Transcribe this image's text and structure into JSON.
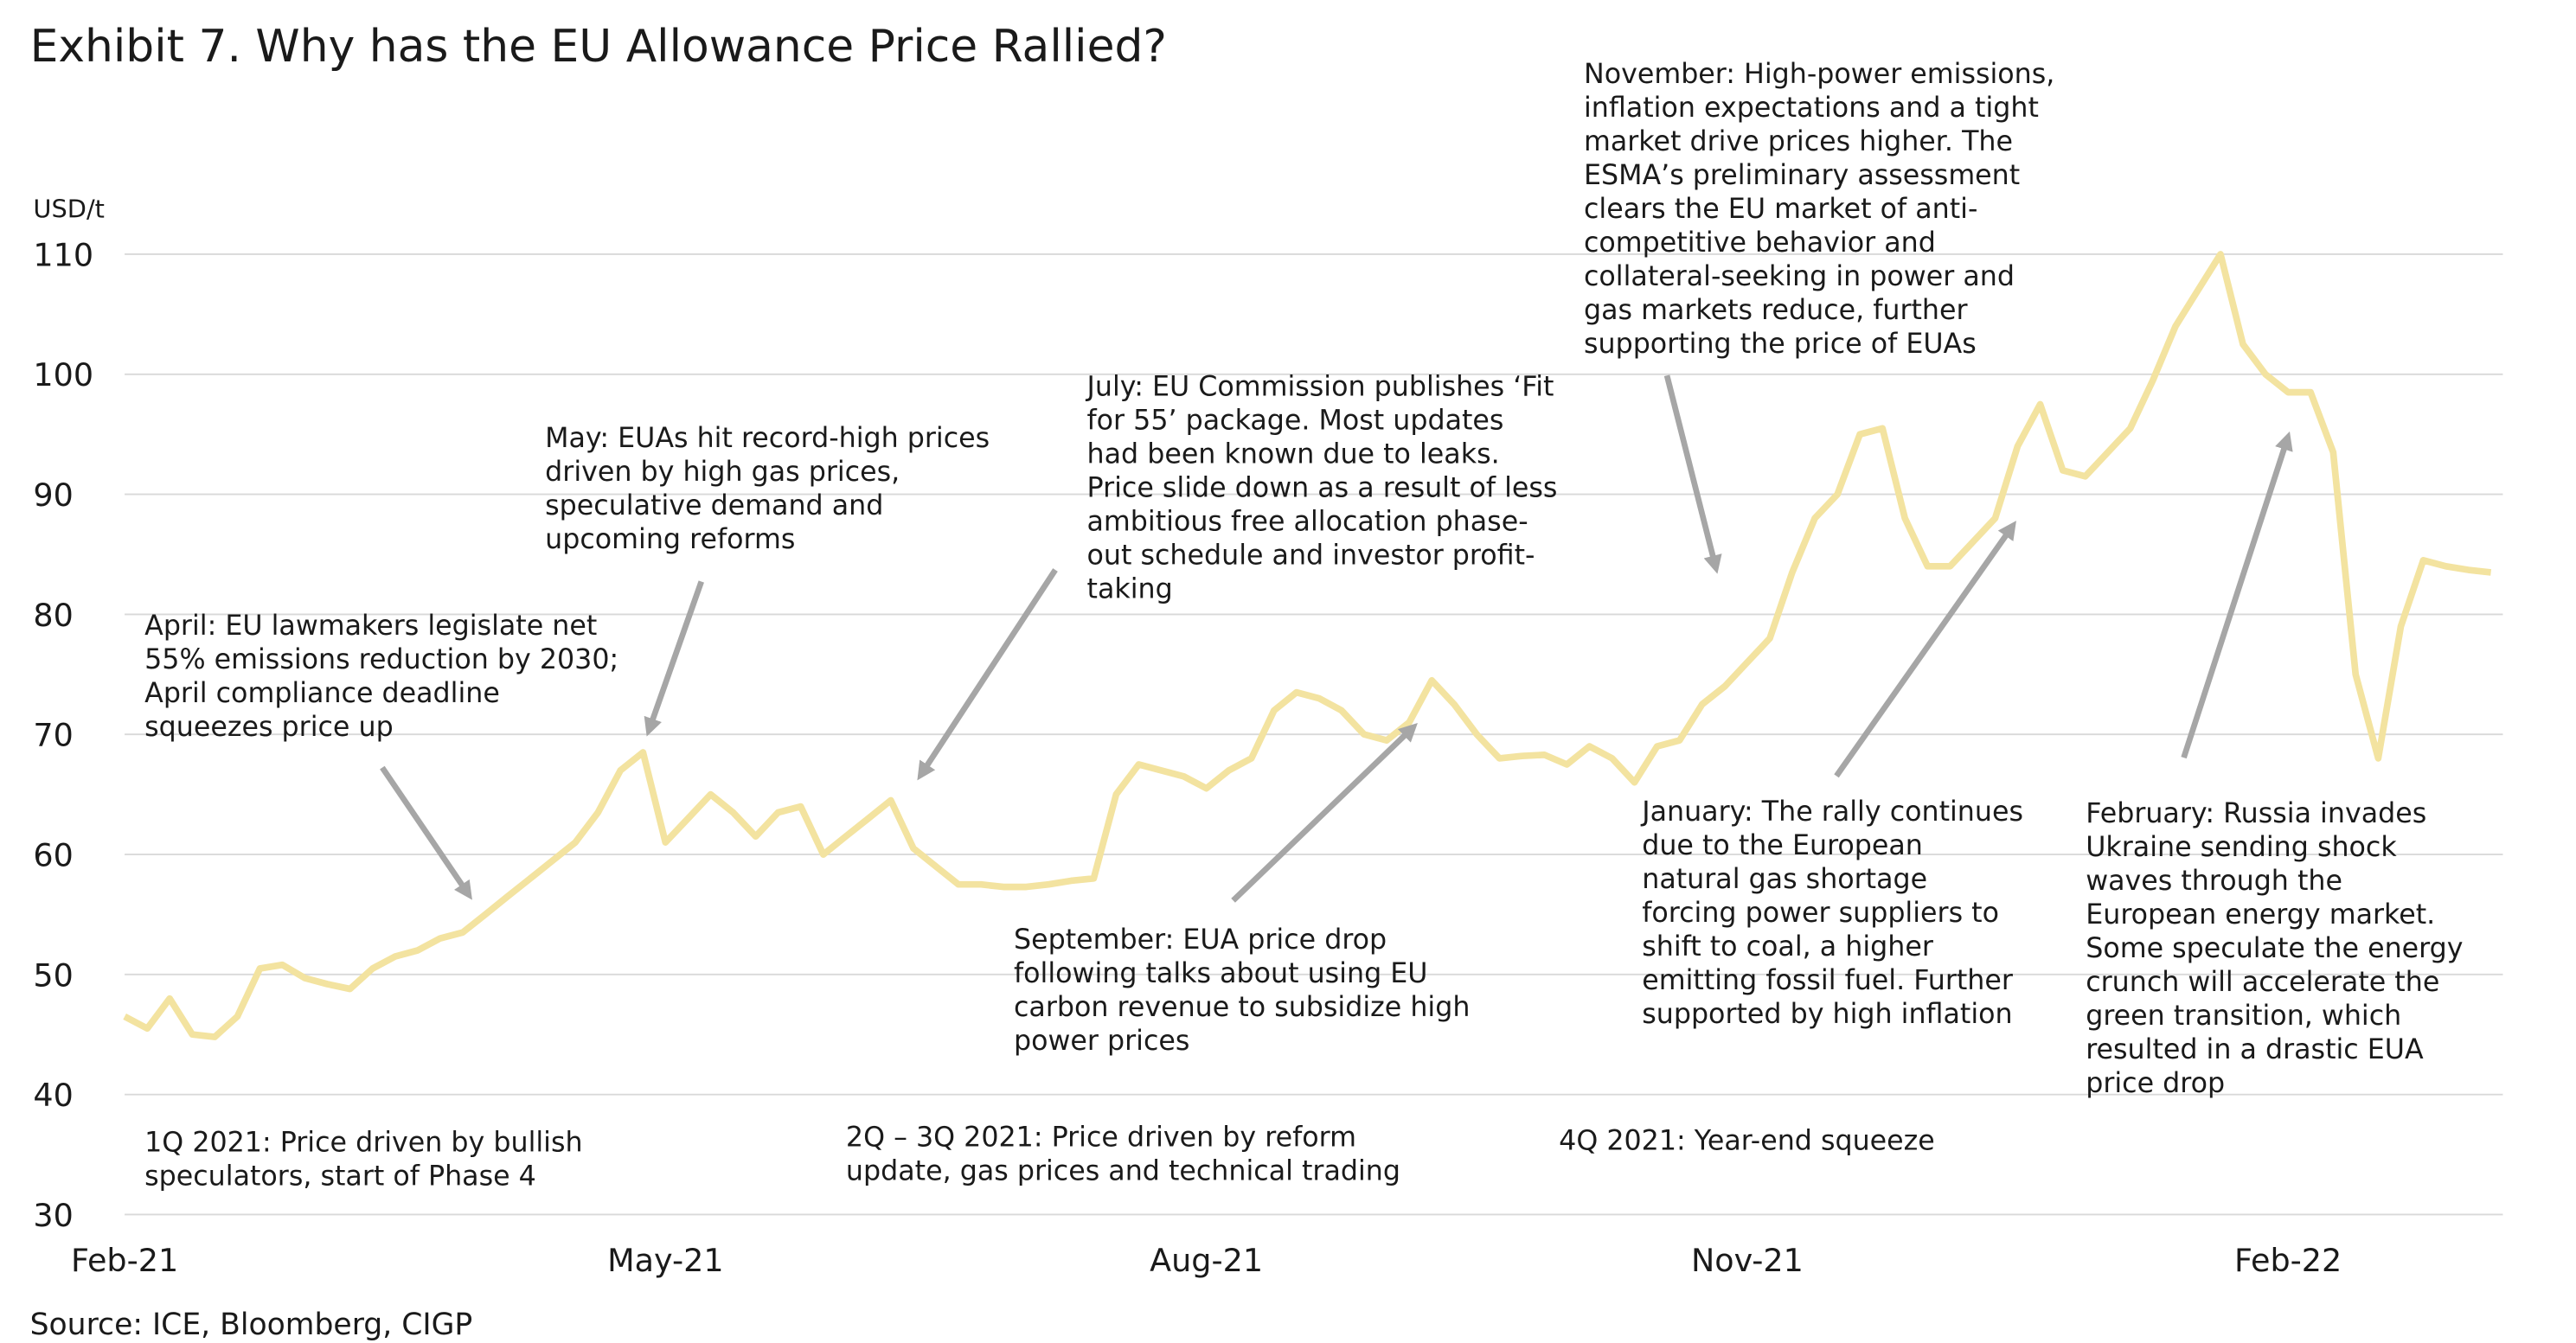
{
  "chart_data": {
    "type": "line",
    "title": "Exhibit 7. Why has the EU Allowance Price Rallied?",
    "y_label": "USD/t",
    "source": "Source: ICE, Bloomberg, CIGP",
    "color": "#f3e3a0",
    "grid": true,
    "ylim": [
      30,
      110
    ],
    "yticks": [
      30,
      40,
      50,
      60,
      70,
      80,
      90,
      100,
      110
    ],
    "categories": [
      "Feb-21",
      null,
      null,
      null,
      null,
      null,
      null,
      null,
      null,
      null,
      null,
      null,
      null,
      null,
      null,
      null,
      null,
      null,
      null,
      null,
      null,
      null,
      null,
      null,
      "May-21",
      null,
      null,
      null,
      null,
      null,
      null,
      null,
      null,
      null,
      null,
      null,
      null,
      null,
      null,
      null,
      null,
      null,
      null,
      null,
      null,
      null,
      null,
      null,
      "Aug-21",
      null,
      null,
      null,
      null,
      null,
      null,
      null,
      null,
      null,
      null,
      null,
      null,
      null,
      null,
      null,
      null,
      null,
      null,
      null,
      null,
      null,
      null,
      null,
      "Nov-21",
      null,
      null,
      null,
      null,
      null,
      null,
      null,
      null,
      null,
      null,
      null,
      null,
      null,
      null,
      null,
      null,
      null,
      null,
      null,
      null,
      null,
      null,
      null,
      "Feb-22",
      null,
      null,
      null,
      null,
      null,
      null,
      null,
      null,
      null
    ],
    "values": [
      46.5,
      45.5,
      48,
      45,
      44.8,
      46.5,
      50.5,
      50.8,
      49.7,
      49.2,
      48.8,
      50.5,
      51.5,
      52,
      53,
      53.5,
      55,
      56.5,
      58,
      59.5,
      61,
      63.5,
      67,
      68.5,
      61,
      63,
      65,
      63.5,
      61.5,
      63.5,
      64,
      60,
      61.5,
      63,
      64.5,
      60.5,
      59,
      57.5,
      57.5,
      57.3,
      57.3,
      57.5,
      57.8,
      58,
      65,
      67.5,
      67,
      66.5,
      65.5,
      67,
      68,
      72,
      73.5,
      73,
      72,
      70,
      69.5,
      71,
      74.5,
      72.5,
      70,
      68,
      68.2,
      68.3,
      67.5,
      69,
      68,
      66,
      69,
      69.5,
      72.5,
      74,
      76,
      78,
      83.5,
      88,
      90,
      95,
      95.5,
      88,
      84,
      84,
      86,
      88,
      94,
      97.5,
      92,
      91.5,
      93.5,
      95.5,
      99.5,
      104,
      107,
      110,
      102.5,
      100,
      98.5,
      98.5,
      93.5,
      75,
      68,
      79,
      84.5,
      84,
      83.7,
      83.5
    ],
    "annotations": [
      [
        "April: EU lawmakers legislate net",
        "55% emissions reduction by 2030;",
        "April compliance deadline",
        "squeezes price up"
      ],
      [
        "May: EUAs hit record-high prices",
        "driven by high gas prices,",
        "speculative demand and",
        "upcoming reforms"
      ],
      [
        "July: EU Commission publishes ‘Fit",
        "for 55’ package. Most updates",
        "had been known due to leaks.",
        "Price slide down as a result of less",
        "ambitious free allocation phase-",
        "out schedule and investor profit-",
        "taking"
      ],
      [
        "November: High-power emissions,",
        "inflation expectations and a tight",
        "market drive prices higher. The",
        "ESMA’s preliminary assessment",
        "clears the EU market of anti-",
        "competitive behavior and",
        "collateral-seeking in power and",
        "gas markets  reduce, further",
        "supporting the price of EUAs"
      ],
      [
        "September: EUA price drop",
        "following talks about using EU",
        "carbon revenue to subsidize high",
        "power prices"
      ],
      [
        "January: The rally continues",
        "due to the European",
        "natural gas shortage",
        "forcing power suppliers to",
        "shift to coal, a higher",
        "emitting fossil fuel. Further",
        "supported by high inflation"
      ],
      [
        "February: Russia invades",
        "Ukraine sending shock",
        "waves through the",
        "European energy market.",
        "Some speculate the energy",
        "crunch will accelerate the",
        "green transition, which",
        "resulted in a drastic EUA",
        "price drop"
      ],
      [
        "1Q 2021: Price driven by bullish",
        "speculators, start of Phase 4"
      ],
      [
        "2Q – 3Q 2021: Price driven by reform",
        "update, gas prices and technical trading"
      ],
      [
        "4Q 2021: Year-end squeeze"
      ]
    ]
  }
}
